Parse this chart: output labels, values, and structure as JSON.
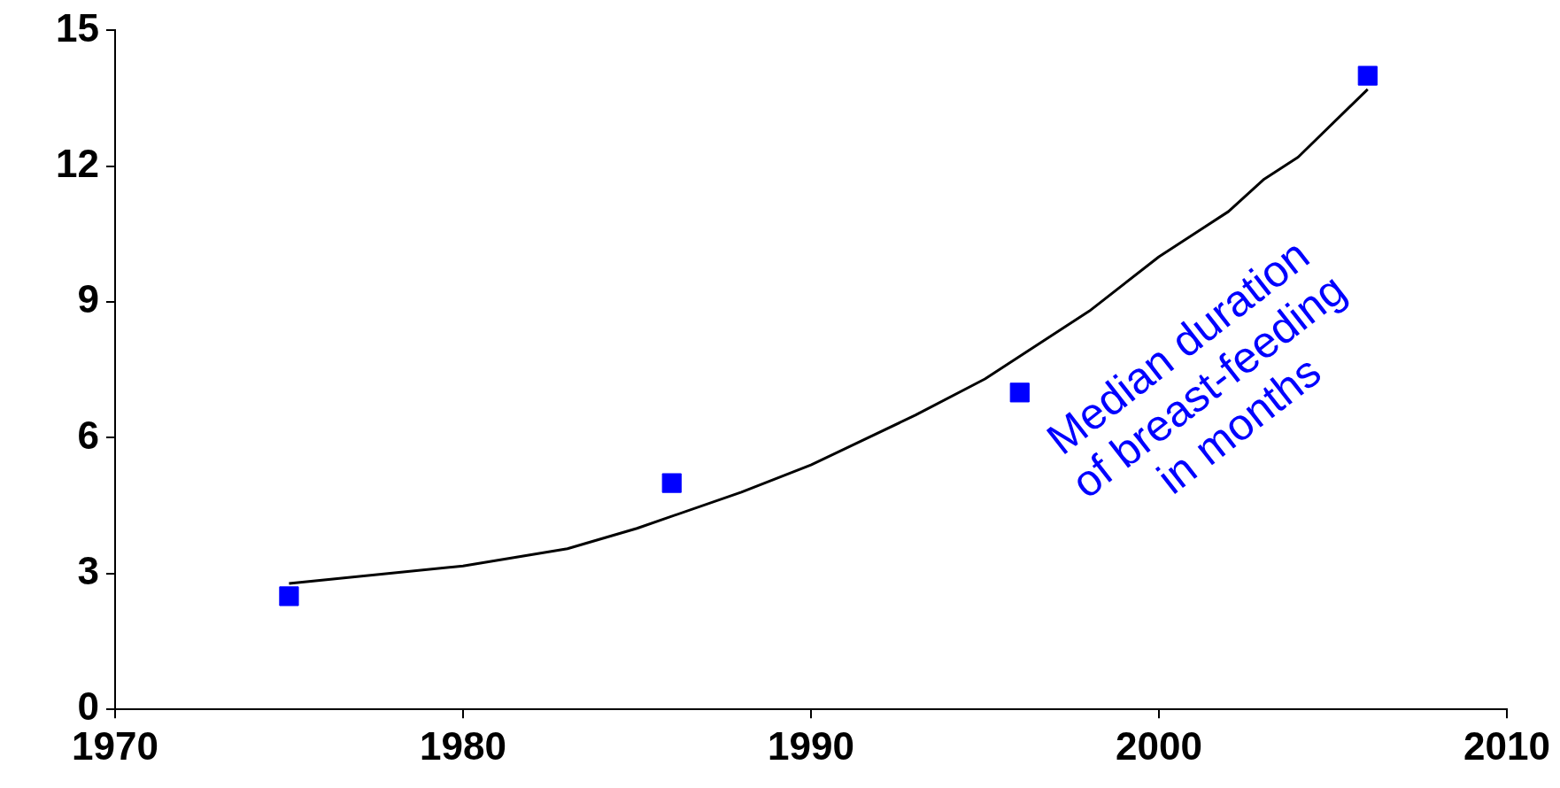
{
  "chart_data": {
    "type": "scatter",
    "xlim": [
      1970,
      2010
    ],
    "xticks": [
      1970,
      1980,
      1990,
      2000,
      2010
    ],
    "ylim": [
      0,
      15
    ],
    "yticks": [
      0,
      3,
      6,
      9,
      12,
      15
    ],
    "grid": false,
    "legend": false,
    "annotations": [
      "Median duration\nof breast-feeding\nin months"
    ],
    "series": [
      {
        "type": "line",
        "marker": "none",
        "line_style": "solid",
        "color": "#000000",
        "x": [
          1975,
          1980,
          1983,
          1985,
          1988,
          1990,
          1993,
          1995,
          1998,
          2000,
          2002,
          2003,
          2004,
          2006
        ],
        "values": [
          2.78,
          3.17,
          3.55,
          4.0,
          4.8,
          5.4,
          6.5,
          7.3,
          8.8,
          10.0,
          11.0,
          11.7,
          12.2,
          13.7
        ]
      },
      {
        "marker": "square",
        "color": "#0000ff",
        "x": [
          1975,
          1986,
          1996,
          2006
        ],
        "values": [
          2.5,
          5,
          7,
          14
        ]
      }
    ]
  }
}
